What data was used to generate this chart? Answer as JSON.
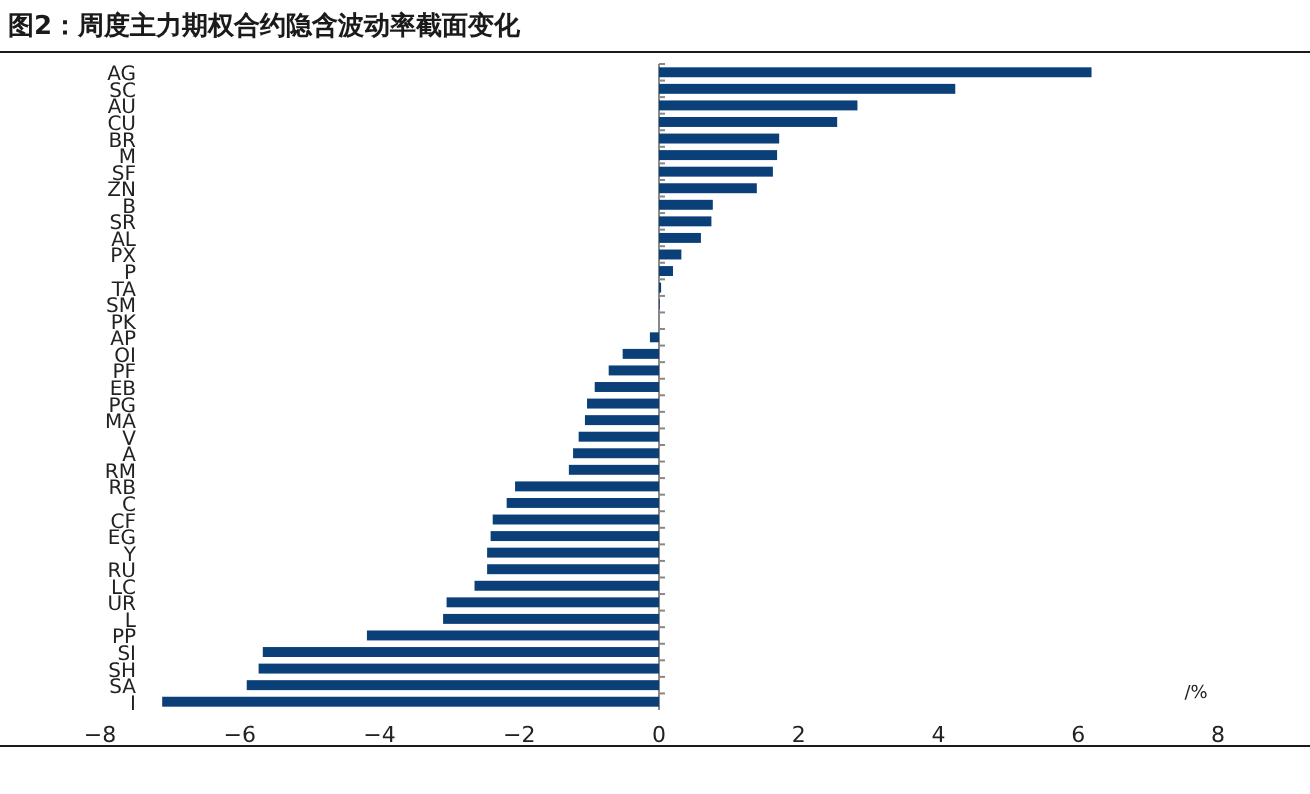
{
  "chart_data": {
    "type": "bar",
    "orientation": "horizontal",
    "title": "图2：周度主力期权合约隐含波动率截面变化",
    "xlabel": "/%",
    "categories": [
      "AG",
      "SC",
      "AU",
      "CU",
      "BR",
      "M",
      "SF",
      "ZN",
      "B",
      "SR",
      "AL",
      "PX",
      "P",
      "TA",
      "SM",
      "PK",
      "AP",
      "OI",
      "PF",
      "EB",
      "PG",
      "MA",
      "V",
      "A",
      "RM",
      "RB",
      "C",
      "CF",
      "EG",
      "Y",
      "RU",
      "LC",
      "UR",
      "L",
      "PP",
      "SI",
      "SH",
      "SA",
      "I"
    ],
    "series": [
      {
        "color": "#0b3f78",
        "values": [
          6.19,
          4.24,
          2.84,
          2.55,
          1.72,
          1.69,
          1.63,
          1.4,
          0.77,
          0.75,
          0.6,
          0.32,
          0.2,
          0.03,
          0.01,
          0.0,
          -0.13,
          -0.52,
          -0.72,
          -0.92,
          -1.03,
          -1.06,
          -1.15,
          -1.23,
          -1.29,
          -2.06,
          -2.18,
          -2.38,
          -2.41,
          -2.46,
          -2.46,
          -2.64,
          -3.04,
          -3.09,
          -4.18,
          -5.67,
          -5.73,
          -5.9,
          -7.11
        ]
      }
    ],
    "xlim": [
      -8,
      8
    ],
    "xticks": [
      -8,
      -6,
      -4,
      -2,
      0,
      2,
      4,
      6,
      8
    ]
  }
}
